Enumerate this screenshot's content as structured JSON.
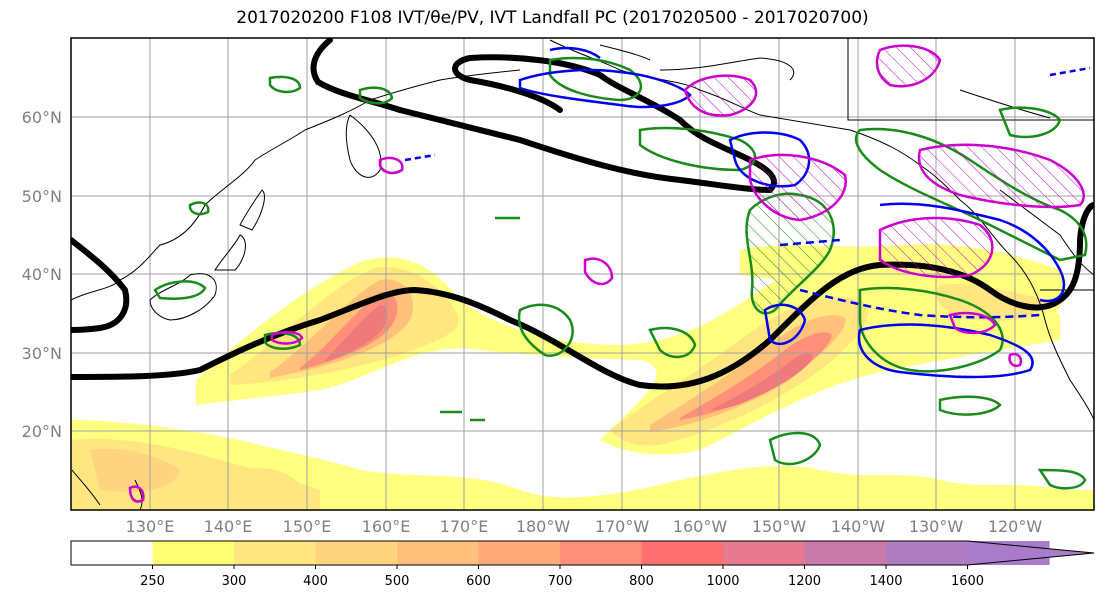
{
  "title": "2017020200 F108 IVT/θe/PV, IVT Landfall PC (2017020500 - 2017020700)",
  "map": {
    "lat_labels": [
      "60°N",
      "50°N",
      "40°N",
      "30°N",
      "20°N"
    ],
    "lon_labels": [
      "130°E",
      "140°E",
      "150°E",
      "160°E",
      "170°E",
      "180°W",
      "170°W",
      "160°W",
      "150°W",
      "140°W",
      "130°W",
      "120°W"
    ],
    "extent": {
      "lon_min": 120,
      "lon_max": 250,
      "lat_min": 10,
      "lat_max": 70
    },
    "gridlines": true
  },
  "colorbar": {
    "levels": [
      "250",
      "300",
      "400",
      "500",
      "600",
      "700",
      "800",
      "1000",
      "1200",
      "1400",
      "1600"
    ],
    "colors": [
      "#ffffff",
      "#ffff73",
      "#ffe680",
      "#ffd480",
      "#ffc07a",
      "#ffaa78",
      "#ff8f78",
      "#ff7070",
      "#e87a90",
      "#c97aa8",
      "#b07cc0",
      "#a87cc8"
    ],
    "extend": "max"
  },
  "colors": {
    "theta_e_contour": "#000000",
    "pv_green": "#1a8a1a",
    "pv_blue": "#0000ee",
    "pv_magenta": "#cc00cc"
  }
}
